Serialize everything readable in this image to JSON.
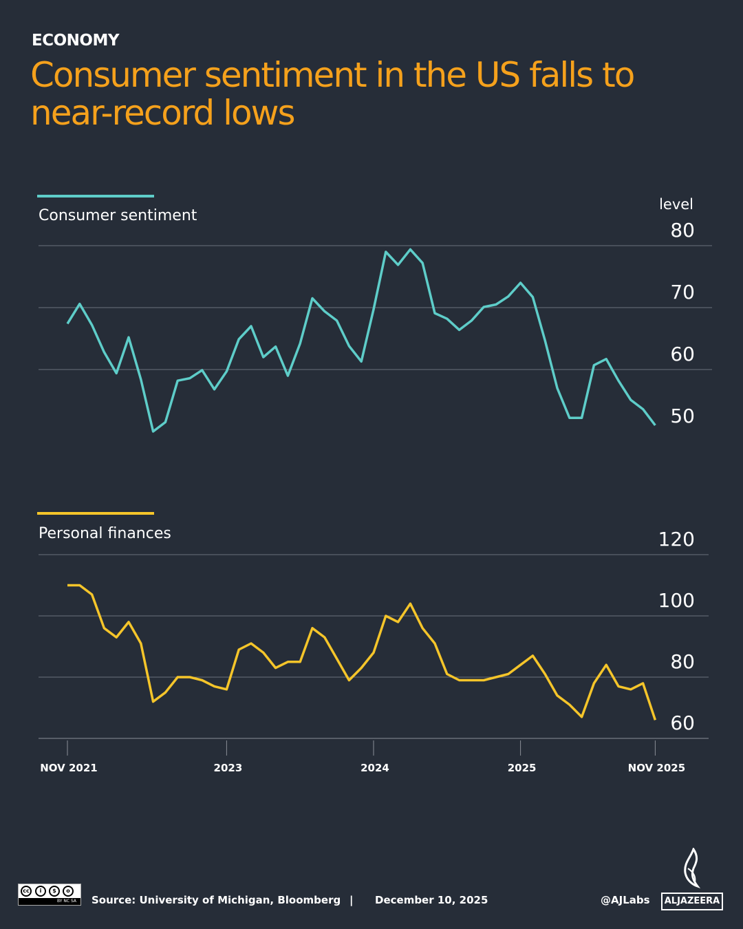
{
  "kicker": "ECONOMY",
  "title": "Consumer sentiment in the US falls to near-record lows",
  "colors": {
    "background": "#262d38",
    "title": "#f5a11c",
    "sentiment": "#5ecdc9",
    "finances": "#f5c52a",
    "grid": "#6b717b"
  },
  "chart_data": [
    {
      "type": "line",
      "title": "Consumer sentiment",
      "ylabel": "level",
      "ylim": [
        50,
        80
      ],
      "yticks": [
        80,
        70,
        60,
        50
      ],
      "grid": true,
      "x_start": "2021-11",
      "x_end": "2025-11",
      "xticks": [
        {
          "label": "NOV 2021",
          "date": "2021-11"
        },
        {
          "label": "2023",
          "date": "2023-01"
        },
        {
          "label": "2024",
          "date": "2024-01"
        },
        {
          "label": "2025",
          "date": "2025-01"
        },
        {
          "label": "NOV 2025",
          "date": "2025-11"
        }
      ],
      "series": [
        {
          "values": [
            67.4,
            70.6,
            67.2,
            62.8,
            59.4,
            65.2,
            58.4,
            50.0,
            51.5,
            58.2,
            58.6,
            59.9,
            56.8,
            59.7,
            64.9,
            67.0,
            62.0,
            63.7,
            59.0,
            64.2,
            71.5,
            69.4,
            67.9,
            63.8,
            61.3,
            69.7,
            79.0,
            76.9,
            79.4,
            77.2,
            69.1,
            68.2,
            66.4,
            67.9,
            70.1,
            70.5,
            71.8,
            74.0,
            71.7,
            64.7,
            57.0,
            52.2,
            52.2,
            60.7,
            61.7,
            58.2,
            55.1,
            53.6,
            51.0
          ]
        }
      ]
    },
    {
      "type": "line",
      "title": "Personal finances",
      "ylim": [
        60,
        120
      ],
      "yticks": [
        120,
        100,
        80,
        60
      ],
      "grid": true,
      "x_start": "2021-11",
      "x_end": "2025-11",
      "series": [
        {
          "values": [
            110,
            110,
            107,
            96,
            93,
            98,
            91,
            72,
            75,
            80,
            80,
            79,
            77,
            76,
            89,
            91,
            88,
            83,
            85,
            85,
            96,
            93,
            86,
            79,
            83,
            88,
            100,
            98,
            104,
            96,
            91,
            81,
            79,
            79,
            79,
            80,
            81,
            84,
            87,
            81,
            74,
            71,
            67,
            78,
            84,
            77,
            76,
            78,
            66
          ]
        }
      ]
    }
  ],
  "footer": {
    "license": "BY NC SA",
    "source": "Source:  University of Michigan, Bloomberg",
    "separator": "|",
    "date": "December 10, 2025",
    "handle": "@AJLabs",
    "brand": "ALJAZEERA"
  }
}
